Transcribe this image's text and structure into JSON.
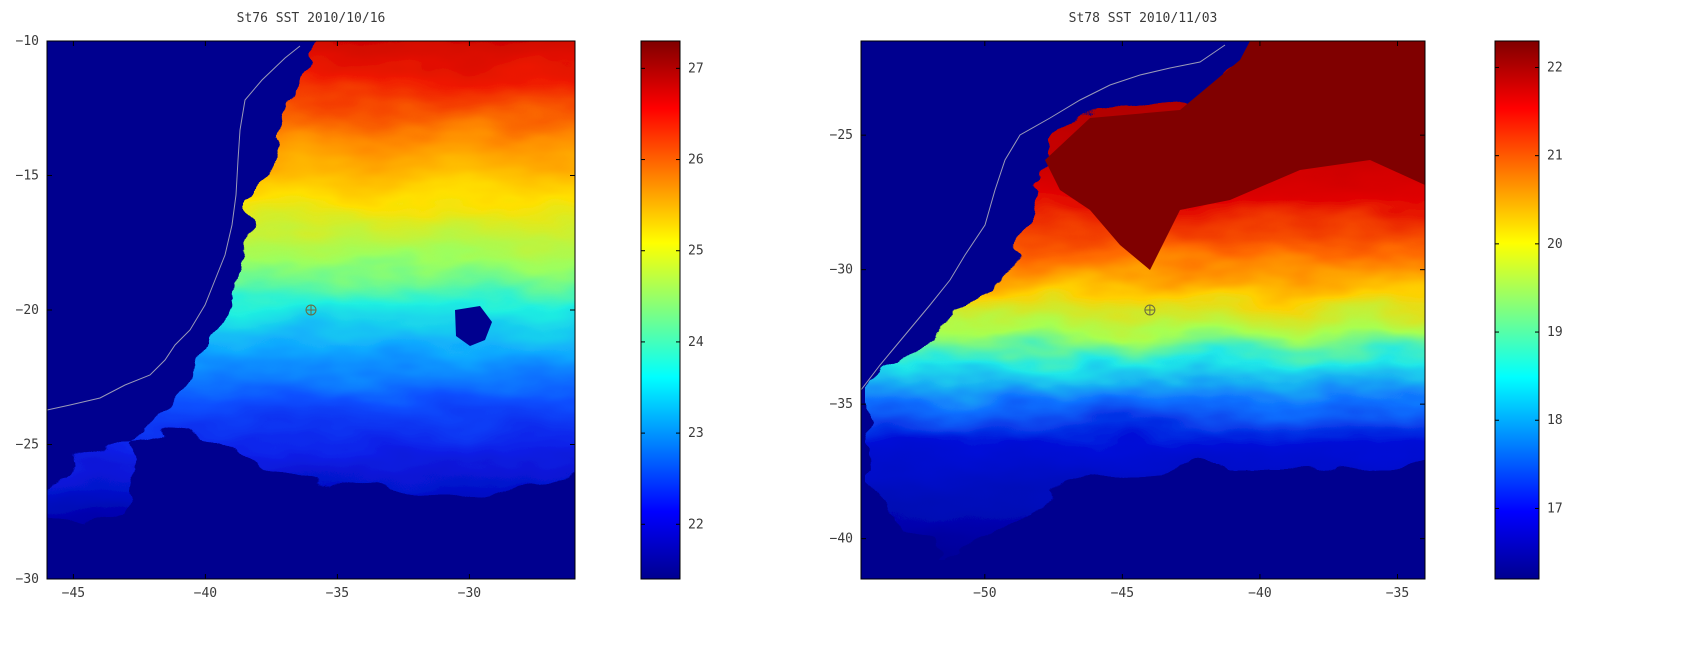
{
  "chart_data": [
    {
      "type": "heatmap",
      "title": "St76 SST 2010/10/16",
      "xlabel": "",
      "ylabel": "",
      "xlim": [
        -46,
        -26
      ],
      "ylim": [
        -30,
        -10
      ],
      "x_ticks": [
        -45,
        -40,
        -35,
        -30
      ],
      "y_ticks": [
        -10,
        -15,
        -20,
        -25,
        -30
      ],
      "colorbar": {
        "range": [
          21.4,
          27.3
        ],
        "ticks": [
          22,
          23,
          24,
          25,
          26,
          27
        ],
        "colormap": "jet"
      },
      "station_marker": {
        "lon": -36,
        "lat": -20
      },
      "land_color": "#00008f",
      "grid": false
    },
    {
      "type": "heatmap",
      "title": "St78 SST 2010/11/03",
      "xlabel": "",
      "ylabel": "",
      "xlim": [
        -54.5,
        -34
      ],
      "ylim": [
        -41.5,
        -21.5
      ],
      "x_ticks": [
        -50,
        -45,
        -40,
        -35
      ],
      "y_ticks": [
        -25,
        -30,
        -35,
        -40
      ],
      "colorbar": {
        "range": [
          16.2,
          22.3
        ],
        "ticks": [
          17,
          18,
          19,
          20,
          21,
          22
        ],
        "colormap": "jet"
      },
      "station_marker": {
        "lon": -44,
        "lat": -31.5
      },
      "land_color": "#00008f",
      "grid": false
    }
  ]
}
